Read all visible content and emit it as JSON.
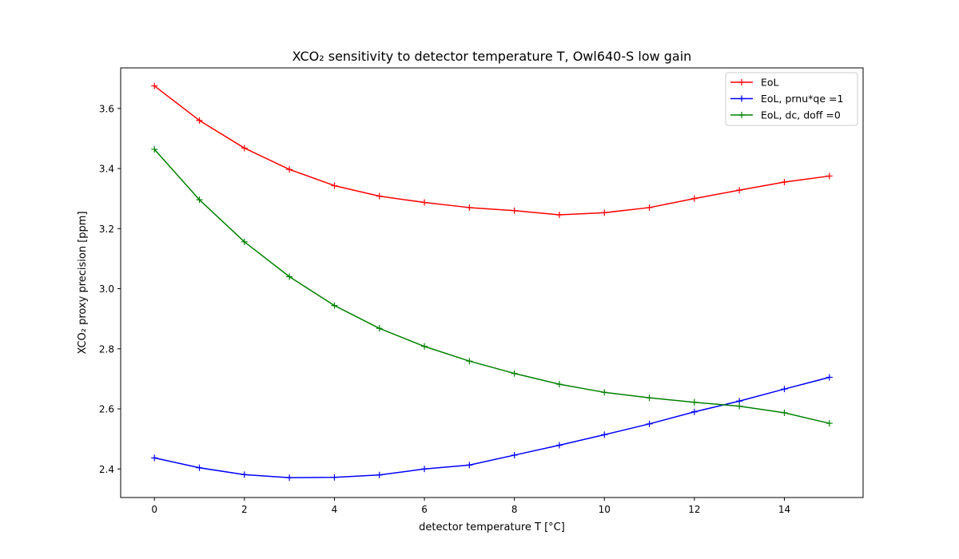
{
  "chart_data": {
    "type": "line",
    "title": "XCO₂ sensitivity to detector temperature T, Owl640-S low gain",
    "xlabel": "detector temperature T [°C]",
    "ylabel": "XCO₂ proxy precision [ppm]",
    "xlim": [
      -0.75,
      15.75
    ],
    "ylim": [
      2.305,
      3.735
    ],
    "xticks": [
      0,
      2,
      4,
      6,
      8,
      10,
      12,
      14
    ],
    "yticks": [
      2.4,
      2.6,
      2.8,
      3.0,
      3.2,
      3.4,
      3.6
    ],
    "xtick_labels": [
      "0",
      "2",
      "4",
      "6",
      "8",
      "10",
      "12",
      "14"
    ],
    "ytick_labels": [
      "2.4",
      "2.6",
      "2.8",
      "3.0",
      "3.2",
      "3.4",
      "3.6"
    ],
    "grid": false,
    "legend_position": "top-right",
    "marker": "+",
    "x": [
      0,
      1,
      2,
      3,
      4,
      5,
      6,
      7,
      8,
      9,
      10,
      11,
      12,
      13,
      14,
      15
    ],
    "series": [
      {
        "name": "EoL",
        "color": "#ff0000",
        "values": [
          3.675,
          3.56,
          3.468,
          3.397,
          3.343,
          3.308,
          3.287,
          3.27,
          3.26,
          3.246,
          3.253,
          3.27,
          3.3,
          3.328,
          3.355,
          3.375
        ]
      },
      {
        "name": "EoL, prnu*qe =1",
        "color": "#0000ff",
        "values": [
          2.437,
          2.404,
          2.381,
          2.371,
          2.372,
          2.38,
          2.4,
          2.413,
          2.446,
          2.479,
          2.514,
          2.55,
          2.59,
          2.626,
          2.666,
          2.705
        ]
      },
      {
        "name": "EoL, dc, doff =0",
        "color": "#008000",
        "values": [
          3.464,
          3.296,
          3.156,
          3.04,
          2.944,
          2.868,
          2.808,
          2.759,
          2.718,
          2.682,
          2.655,
          2.637,
          2.622,
          2.609,
          2.587,
          2.552
        ]
      }
    ]
  }
}
